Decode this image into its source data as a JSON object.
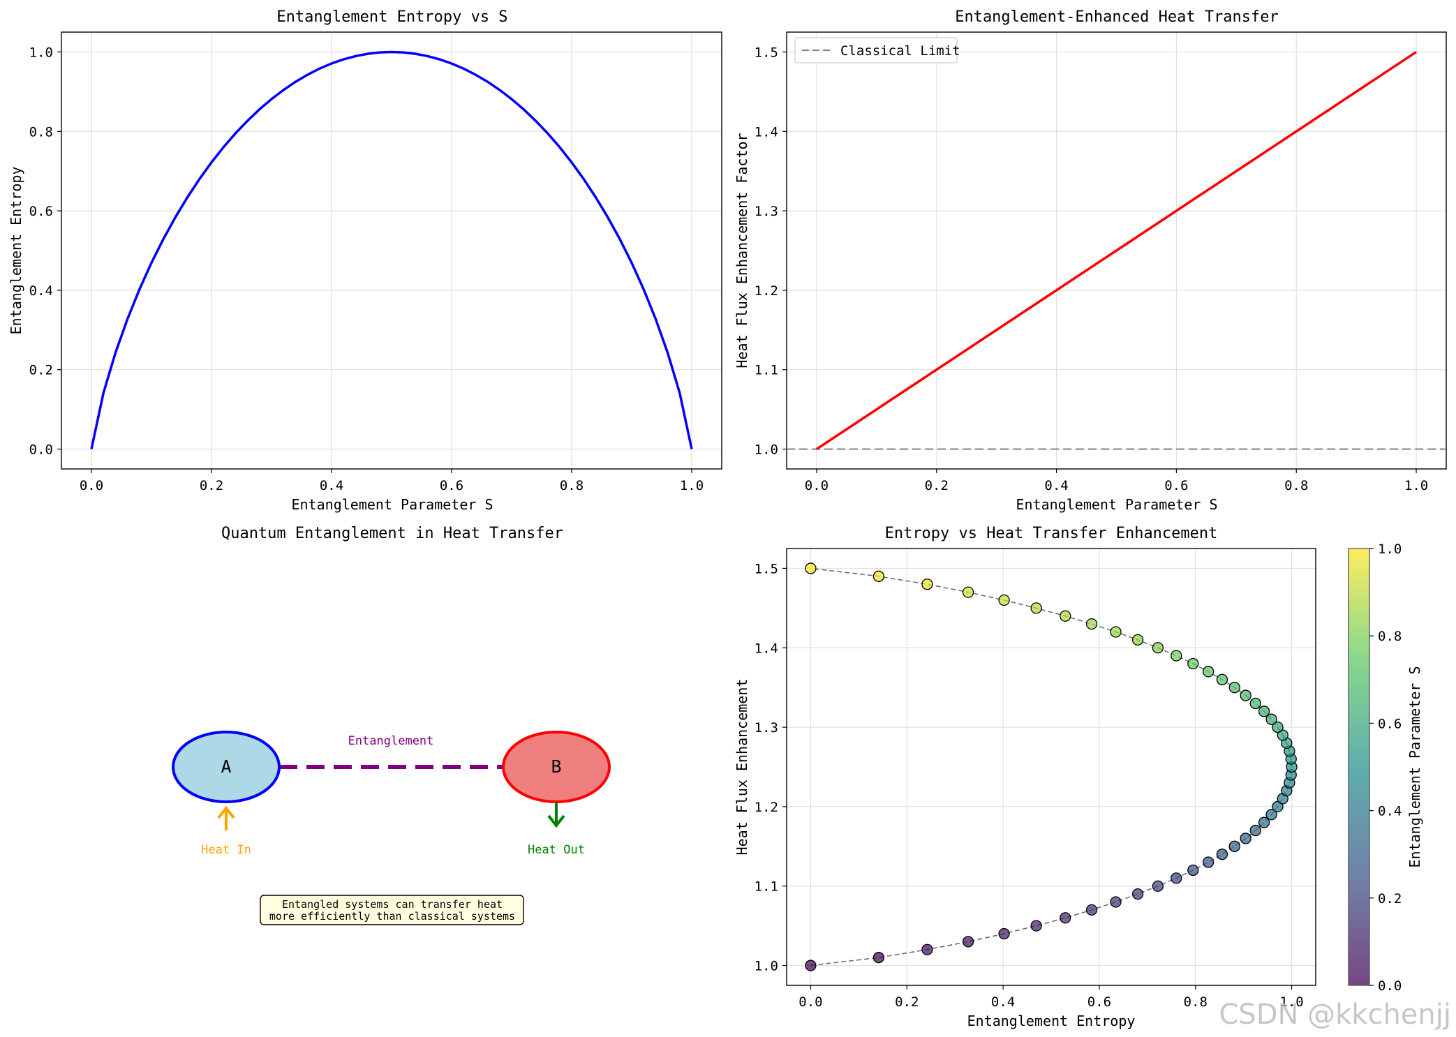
{
  "watermark": "CSDN @kkchenjj",
  "chart_data": [
    {
      "type": "line",
      "title": "Entanglement Entropy vs S",
      "xlabel": "Entanglement Parameter S",
      "ylabel": "Entanglement Entropy",
      "xlim": [
        -0.05,
        1.05
      ],
      "ylim": [
        -0.05,
        1.05
      ],
      "xticks": [
        "0.0",
        "0.2",
        "0.4",
        "0.6",
        "0.8",
        "1.0"
      ],
      "yticks": [
        "0.0",
        "0.2",
        "0.4",
        "0.6",
        "0.8",
        "1.0"
      ],
      "grid": true,
      "series": [
        {
          "formula": "binary_entropy",
          "x_range": [
            0,
            1
          ],
          "n_points": 51,
          "color": "#0000ff"
        }
      ]
    },
    {
      "type": "line",
      "title": "Entanglement-Enhanced Heat Transfer",
      "xlabel": "Entanglement Parameter S",
      "ylabel": "Heat Flux Enhancement Factor",
      "xlim": [
        -0.05,
        1.05
      ],
      "ylim": [
        0.975,
        1.525
      ],
      "xticks": [
        "0.0",
        "0.2",
        "0.4",
        "0.6",
        "0.8",
        "1.0"
      ],
      "yticks": [
        "1.0",
        "1.1",
        "1.2",
        "1.3",
        "1.4",
        "1.5"
      ],
      "grid": true,
      "legend": "upper-left",
      "series": [
        {
          "x": [
            0,
            1
          ],
          "y": [
            1.0,
            1.5
          ],
          "color": "#ff0000"
        },
        {
          "name": "Classical Limit",
          "y_const": 1.0,
          "color": "#888888",
          "style": "dashed"
        }
      ]
    },
    {
      "type": "diagram",
      "title": "Quantum Entanglement in Heat Transfer",
      "node_a": {
        "label": "A",
        "fill": "#add8e6",
        "stroke": "#0000ff"
      },
      "node_b": {
        "label": "B",
        "fill": "#f08080",
        "stroke": "#ff0000"
      },
      "link_label": "Entanglement",
      "link_color": "#800080",
      "heat_in": {
        "label": "Heat In",
        "color": "#ffa500"
      },
      "heat_out": {
        "label": "Heat Out",
        "color": "#008000"
      },
      "note": [
        "Entangled systems can transfer heat",
        "more efficiently than classical systems"
      ]
    },
    {
      "type": "scatter",
      "title": "Entropy vs Heat Transfer Enhancement",
      "xlabel": "Entanglement Entropy",
      "ylabel": "Heat Flux Enhancement",
      "xlim": [
        -0.05,
        1.05
      ],
      "ylim": [
        0.975,
        1.525
      ],
      "xticks": [
        "0.0",
        "0.2",
        "0.4",
        "0.6",
        "0.8",
        "1.0"
      ],
      "yticks": [
        "1.0",
        "1.1",
        "1.2",
        "1.3",
        "1.4",
        "1.5"
      ],
      "grid": true,
      "s_values": [
        0.0,
        0.02,
        0.04,
        0.06,
        0.08,
        0.1,
        0.12,
        0.14,
        0.16,
        0.18,
        0.2,
        0.22,
        0.24,
        0.26,
        0.28,
        0.3,
        0.32,
        0.34,
        0.36,
        0.38,
        0.4,
        0.42,
        0.44,
        0.46,
        0.48,
        0.5,
        0.52,
        0.54,
        0.56,
        0.58,
        0.6,
        0.62,
        0.64,
        0.66,
        0.68,
        0.7,
        0.72,
        0.74,
        0.76,
        0.78,
        0.8,
        0.82,
        0.84,
        0.86,
        0.88,
        0.9,
        0.92,
        0.94,
        0.96,
        0.98,
        1.0
      ],
      "colormap": "viridis",
      "colorbar": {
        "label": "Entanglement Parameter S",
        "ticks": [
          "0.0",
          "0.2",
          "0.4",
          "0.6",
          "0.8",
          "1.0"
        ]
      }
    }
  ]
}
